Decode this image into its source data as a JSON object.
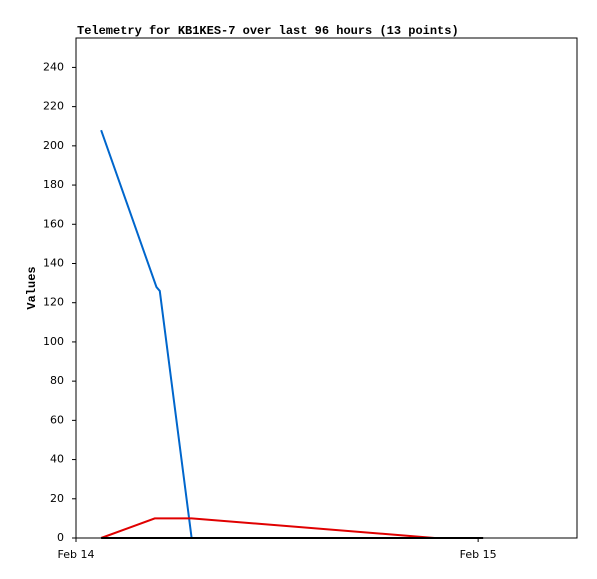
{
  "chart_data": {
    "type": "line",
    "title": "Telemetry for KB1KES-7 over last 96 hours (13 points)",
    "y_label": "Values",
    "series": [
      {
        "color": "#0066cc",
        "x": [
          1.5,
          4.8,
          5.0,
          6.9
        ],
        "values": [
          208,
          128,
          126,
          0
        ]
      },
      {
        "color": "#e00000",
        "x": [
          1.5,
          4.7,
          6.9,
          21.4
        ],
        "values": [
          0,
          10,
          10,
          0
        ]
      },
      {
        "color": "#000000",
        "x": [
          1.5,
          24.3
        ],
        "values": [
          0,
          0
        ]
      }
    ],
    "xlim": [
      0,
      29.9
    ],
    "xticks": [
      {
        "value": 0,
        "label": "Feb 14"
      },
      {
        "value": 24,
        "label": "Feb 15"
      }
    ],
    "ylim": [
      0,
      255
    ],
    "yticks": [
      0,
      20,
      40,
      60,
      80,
      100,
      120,
      140,
      160,
      180,
      200,
      220,
      240
    ]
  }
}
